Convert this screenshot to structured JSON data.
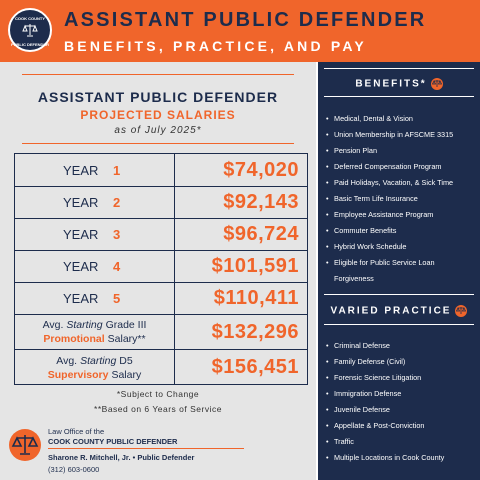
{
  "header": {
    "logo": [
      "COOK COUNTY",
      "PUBLIC DEFENDER"
    ],
    "title": "ASSISTANT PUBLIC DEFENDER",
    "subtitle": "BENEFITS, PRACTICE, AND PAY"
  },
  "salaries": {
    "heading": "ASSISTANT PUBLIC DEFENDER",
    "subheading": "PROJECTED SALARIES",
    "date": "as of July 2025*",
    "years": [
      {
        "label": "YEAR",
        "number": "1",
        "salary": "$74,020"
      },
      {
        "label": "YEAR",
        "number": "2",
        "salary": "$92,143"
      },
      {
        "label": "YEAR",
        "number": "3",
        "salary": "$96,724"
      },
      {
        "label": "YEAR",
        "number": "4",
        "salary": "$101,591"
      },
      {
        "label": "YEAR",
        "number": "5",
        "salary": "$110,411"
      }
    ],
    "special": [
      {
        "line1": [
          "Avg.",
          "Starting",
          "Grade III"
        ],
        "line2": [
          "Promotional",
          "Salary**"
        ],
        "salary": "$132,296"
      },
      {
        "line1": [
          "Avg.",
          "Starting",
          "D5"
        ],
        "line2": [
          "Supervisory",
          "Salary"
        ],
        "salary": "$156,451"
      }
    ],
    "notes": [
      "*Subject to Change",
      "**Based on 6 Years of Service"
    ]
  },
  "footer": {
    "office": "Law Office of the",
    "name": "COOK COUNTY PUBLIC DEFENDER",
    "defender": "Sharone R. Mitchell, Jr. •  Public Defender",
    "phone": "(312) 603-0600"
  },
  "benefits": {
    "title": "BENEFITS*",
    "items": [
      "Medical, Dental & Vision",
      "Union Membership in AFSCME 3315",
      "Pension Plan",
      "Deferred Compensation Program",
      "Paid Holidays, Vacation, & Sick Time",
      "Basic Term Life Insurance",
      "Employee Assistance Program",
      "Commuter Benefits",
      "Hybrid Work Schedule",
      "Eligible for Public Service Loan Forgiveness"
    ]
  },
  "practice": {
    "title": "VARIED PRACTICE",
    "items": [
      "Criminal Defense",
      "Family Defense (Civil)",
      "Forensic Science Litigation",
      "Immigration Defense",
      "Juvenile Defense",
      "Appellate & Post-Conviction",
      "Traffic",
      "Multiple Locations in Cook County"
    ]
  }
}
